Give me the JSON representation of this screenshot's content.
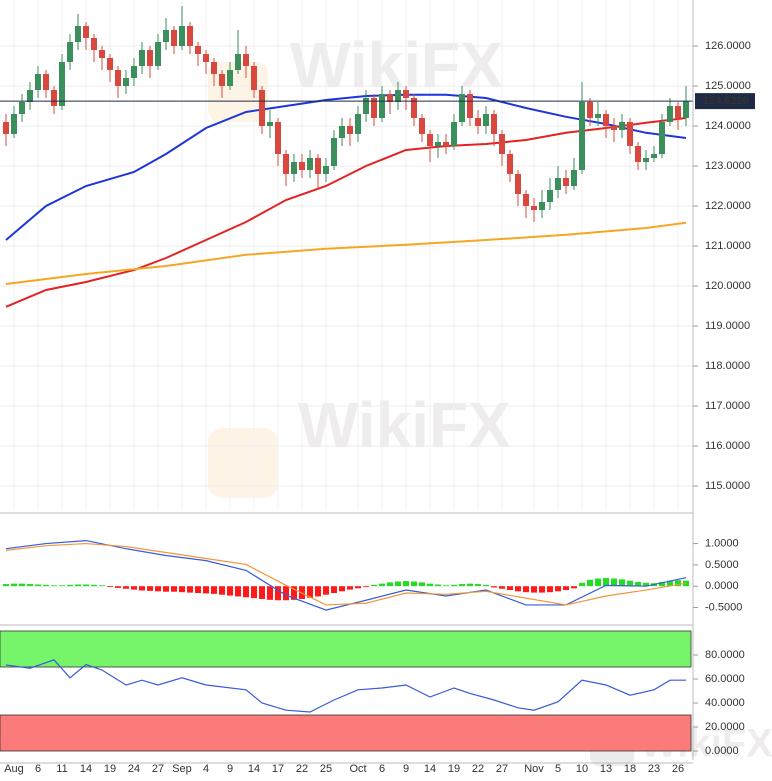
{
  "watermark": "WikiFX",
  "chart_data": [
    {
      "type": "candlestick",
      "categories": [
        null,
        "Aug",
        null,
        null,
        "6",
        null,
        null,
        "11",
        null,
        null,
        "14",
        null,
        null,
        "19",
        null,
        null,
        "24",
        null,
        null,
        "27",
        null,
        null,
        "Sep",
        null,
        null,
        "4",
        null,
        null,
        "9",
        null,
        null,
        "14",
        null,
        null,
        "17",
        null,
        null,
        "22",
        null,
        null,
        "25",
        null,
        null,
        null,
        "Oct",
        null,
        null,
        "6",
        null,
        null,
        "9",
        null,
        null,
        "14",
        null,
        null,
        "19",
        null,
        null,
        "22",
        null,
        null,
        "27",
        null,
        null,
        null,
        "Nov",
        null,
        null,
        "5",
        null,
        null,
        "10",
        null,
        null,
        "13",
        null,
        null,
        "18",
        null,
        null,
        "23",
        null,
        null,
        "26",
        null
      ],
      "open": [
        124.1,
        123.8,
        124.3,
        124.6,
        124.9,
        125.3,
        124.9,
        124.5,
        125.6,
        126.1,
        126.5,
        126.2,
        125.9,
        125.7,
        125.4,
        125.0,
        125.2,
        125.5,
        125.9,
        125.5,
        126.1,
        126.4,
        126.0,
        126.5,
        126.0,
        125.8,
        125.6,
        125.3,
        125.0,
        125.4,
        125.8,
        125.5,
        124.9,
        124.0,
        124.1,
        123.3,
        122.8,
        123.1,
        122.9,
        123.2,
        122.8,
        123.0,
        123.7,
        124.0,
        123.8,
        124.3,
        124.7,
        124.2,
        124.8,
        124.6,
        124.9,
        124.7,
        124.2,
        123.8,
        123.5,
        123.6,
        123.5,
        124.1,
        124.8,
        124.2,
        124.0,
        124.3,
        123.8,
        123.3,
        122.8,
        122.3,
        122.0,
        121.9,
        122.1,
        122.4,
        122.7,
        122.5,
        122.9,
        124.6,
        124.2,
        124.3,
        124.0,
        123.9,
        124.1,
        123.5,
        123.1,
        123.2,
        123.3,
        124.1,
        124.5,
        124.2
      ],
      "high": [
        124.3,
        124.5,
        124.8,
        125.1,
        125.5,
        125.4,
        125.0,
        125.8,
        126.3,
        126.8,
        126.6,
        126.3,
        126.0,
        125.8,
        125.5,
        125.4,
        125.7,
        126.1,
        126.0,
        126.3,
        126.7,
        126.5,
        127.0,
        126.6,
        126.1,
        125.9,
        125.7,
        125.4,
        125.6,
        126.4,
        126.0,
        125.6,
        125.0,
        124.4,
        124.2,
        123.4,
        123.3,
        123.3,
        123.4,
        123.3,
        123.2,
        123.9,
        124.2,
        124.2,
        124.5,
        124.9,
        124.8,
        125.0,
        124.9,
        125.1,
        125.0,
        124.8,
        124.3,
        123.9,
        123.8,
        123.8,
        124.3,
        125.0,
        124.9,
        124.4,
        124.5,
        124.4,
        123.9,
        123.4,
        122.9,
        122.4,
        122.2,
        122.4,
        122.7,
        123.0,
        122.9,
        123.2,
        125.1,
        124.7,
        124.6,
        124.4,
        124.2,
        124.3,
        124.2,
        123.6,
        123.4,
        123.5,
        124.3,
        124.7,
        124.6,
        125.0
      ],
      "low": [
        123.5,
        123.7,
        124.1,
        124.4,
        124.7,
        124.7,
        124.3,
        124.4,
        125.4,
        125.9,
        125.9,
        125.6,
        125.4,
        125.1,
        124.7,
        124.8,
        125.0,
        125.3,
        125.2,
        125.4,
        125.9,
        125.8,
        125.9,
        125.8,
        125.5,
        125.3,
        125.0,
        124.7,
        124.9,
        125.3,
        125.2,
        124.7,
        123.8,
        123.7,
        123.0,
        122.5,
        122.6,
        122.7,
        122.7,
        122.4,
        122.6,
        122.9,
        123.5,
        123.5,
        123.6,
        124.1,
        124.0,
        124.1,
        124.3,
        124.4,
        124.4,
        124.0,
        123.6,
        123.1,
        123.2,
        123.3,
        123.4,
        124.0,
        124.0,
        123.8,
        123.8,
        123.5,
        123.0,
        122.6,
        122.0,
        121.7,
        121.6,
        121.7,
        121.9,
        122.2,
        122.3,
        122.4,
        122.8,
        124.0,
        124.0,
        123.7,
        123.6,
        123.7,
        123.3,
        122.9,
        122.9,
        123.1,
        123.2,
        124.0,
        123.9,
        124.0
      ],
      "close": [
        123.8,
        124.3,
        124.6,
        124.9,
        125.3,
        124.9,
        124.5,
        125.6,
        126.1,
        126.5,
        126.2,
        125.9,
        125.7,
        125.4,
        125.0,
        125.2,
        125.5,
        125.9,
        125.5,
        126.1,
        126.4,
        126.0,
        126.5,
        126.0,
        125.8,
        125.6,
        125.3,
        125.0,
        125.4,
        125.8,
        125.5,
        124.9,
        124.0,
        124.1,
        123.3,
        122.8,
        123.1,
        122.9,
        123.2,
        122.8,
        123.0,
        123.7,
        124.0,
        123.8,
        124.3,
        124.7,
        124.2,
        124.8,
        124.6,
        124.9,
        124.7,
        124.2,
        123.8,
        123.5,
        123.6,
        123.5,
        124.1,
        124.8,
        124.2,
        124.0,
        124.3,
        123.8,
        123.3,
        122.8,
        122.3,
        122.0,
        121.9,
        122.1,
        122.4,
        122.7,
        122.5,
        122.9,
        124.6,
        124.2,
        124.3,
        124.0,
        123.9,
        124.1,
        123.5,
        123.1,
        123.2,
        123.3,
        124.1,
        124.5,
        124.2,
        124.62
      ],
      "up_color": "#3a8f5c",
      "down_color": "#d9483f",
      "series": [
        {
          "color": "#1c36d8",
          "x": [
            0,
            5,
            10,
            16,
            20,
            25,
            30,
            35,
            40,
            45,
            50,
            55,
            60,
            65,
            70,
            75,
            80,
            85
          ],
          "values": [
            121.15,
            122.0,
            122.5,
            122.85,
            123.3,
            123.95,
            124.35,
            124.5,
            124.65,
            124.75,
            124.78,
            124.78,
            124.7,
            124.45,
            124.23,
            124.05,
            123.83,
            123.7
          ]
        },
        {
          "color": "#e32222",
          "x": [
            0,
            5,
            10,
            16,
            20,
            25,
            30,
            35,
            40,
            45,
            50,
            55,
            60,
            65,
            70,
            75,
            80,
            85
          ],
          "values": [
            119.48,
            119.9,
            120.1,
            120.4,
            120.7,
            121.15,
            121.6,
            122.15,
            122.5,
            123.0,
            123.4,
            123.5,
            123.55,
            123.65,
            123.83,
            123.95,
            124.08,
            124.2
          ]
        },
        {
          "color": "#f5a623",
          "x": [
            0,
            10,
            20,
            30,
            40,
            50,
            60,
            70,
            80,
            85
          ],
          "values": [
            120.05,
            120.3,
            120.5,
            120.78,
            120.93,
            121.03,
            121.15,
            121.28,
            121.45,
            121.58
          ]
        }
      ],
      "last": {
        "value": 124.622,
        "label": "124.6220"
      },
      "ylim": [
        114.4,
        127.15
      ],
      "yticks": [
        {
          "value": 126,
          "label": "126.0000"
        },
        {
          "value": 125,
          "label": "125.0000"
        },
        {
          "value": 124,
          "label": "124.0000"
        },
        {
          "value": 123,
          "label": "123.0000"
        },
        {
          "value": 122,
          "label": "122.0000"
        },
        {
          "value": 121,
          "label": "121.0000"
        },
        {
          "value": 120,
          "label": "120.0000"
        },
        {
          "value": 119,
          "label": "119.0000"
        },
        {
          "value": 118,
          "label": "118.0000"
        },
        {
          "value": 117,
          "label": "117.0000"
        },
        {
          "value": 116,
          "label": "116.0000"
        },
        {
          "value": 115,
          "label": "115.0000"
        }
      ],
      "grid": true
    },
    {
      "type": "macd",
      "values": [
        0.05,
        0.06,
        0.06,
        0.05,
        0.04,
        0.03,
        0.02,
        0.02,
        0.03,
        0.04,
        0.04,
        0.03,
        0.02,
        -0.02,
        -0.04,
        -0.06,
        -0.08,
        -0.1,
        -0.11,
        -0.12,
        -0.13,
        -0.13,
        -0.14,
        -0.15,
        -0.16,
        -0.17,
        -0.18,
        -0.2,
        -0.22,
        -0.24,
        -0.26,
        -0.28,
        -0.3,
        -0.32,
        -0.33,
        -0.33,
        -0.32,
        -0.3,
        -0.27,
        -0.24,
        -0.2,
        -0.16,
        -0.12,
        -0.08,
        -0.05,
        -0.02,
        0.03,
        0.06,
        0.09,
        0.11,
        0.12,
        0.11,
        0.09,
        0.06,
        0.04,
        0.02,
        0.03,
        0.05,
        0.06,
        0.05,
        0.03,
        -0.03,
        -0.06,
        -0.09,
        -0.12,
        -0.14,
        -0.15,
        -0.15,
        -0.14,
        -0.12,
        -0.09,
        -0.05,
        0.08,
        0.15,
        0.18,
        0.19,
        0.18,
        0.16,
        0.13,
        0.1,
        0.08,
        0.07,
        0.1,
        0.13,
        0.14,
        0.13
      ],
      "up_color": "#22dd22",
      "down_color": "#ff1a1a",
      "series": [
        {
          "color": "#3a5ad8",
          "x": [
            0,
            5,
            10,
            15,
            20,
            25,
            30,
            35,
            40,
            45,
            50,
            55,
            60,
            65,
            70,
            75,
            80,
            85
          ],
          "values": [
            0.88,
            1.0,
            1.07,
            0.88,
            0.72,
            0.6,
            0.37,
            -0.21,
            -0.56,
            -0.33,
            -0.09,
            -0.23,
            -0.09,
            -0.44,
            -0.44,
            0.02,
            0,
            0.2
          ]
        },
        {
          "color": "#f0973a",
          "x": [
            0,
            5,
            10,
            15,
            20,
            25,
            30,
            35,
            40,
            45,
            50,
            55,
            60,
            65,
            70,
            75,
            80,
            85
          ],
          "values": [
            0.84,
            0.95,
            1.0,
            0.93,
            0.79,
            0.65,
            0.51,
            0.02,
            -0.44,
            -0.4,
            -0.16,
            -0.19,
            -0.12,
            -0.28,
            -0.44,
            -0.23,
            -0.09,
            0.07
          ]
        }
      ],
      "ylim": [
        -0.84,
        1.6
      ],
      "yticks": [
        {
          "value": 1,
          "label": "1.0000"
        },
        {
          "value": 0.5,
          "label": "0.5000"
        },
        {
          "value": 0,
          "label": "0.0000"
        },
        {
          "value": -0.5,
          "label": "-0.5000"
        }
      ]
    },
    {
      "type": "line",
      "series": [
        {
          "color": "#3a5ad8",
          "x": [
            0,
            3,
            6,
            8,
            10,
            12,
            15,
            17,
            19,
            22,
            25,
            30,
            32,
            35,
            38,
            41,
            44,
            47,
            50,
            53,
            56,
            58,
            61,
            64,
            66,
            69,
            72,
            75,
            78,
            81,
            83,
            85
          ],
          "values": [
            71.7,
            69,
            76,
            61,
            72,
            67.5,
            55,
            59,
            55,
            61,
            55,
            51,
            40,
            34,
            32.5,
            42.5,
            51,
            52.5,
            55,
            45,
            52.5,
            48,
            42.5,
            36,
            34,
            41,
            59,
            55,
            46.5,
            51,
            59,
            59
          ]
        }
      ],
      "zones": [
        {
          "range": [
            70,
            100
          ],
          "color": "#77f56a"
        },
        {
          "range": [
            0,
            30
          ],
          "color": "#fb7b7b"
        }
      ],
      "ylim": [
        -7.5,
        102.5
      ],
      "yticks": [
        {
          "value": 80,
          "label": "80.0000"
        },
        {
          "value": 60,
          "label": "60.0000"
        },
        {
          "value": 40,
          "label": "40.0000"
        },
        {
          "value": 20,
          "label": "20.0000"
        },
        {
          "value": 0,
          "label": "0.0000"
        }
      ]
    }
  ]
}
